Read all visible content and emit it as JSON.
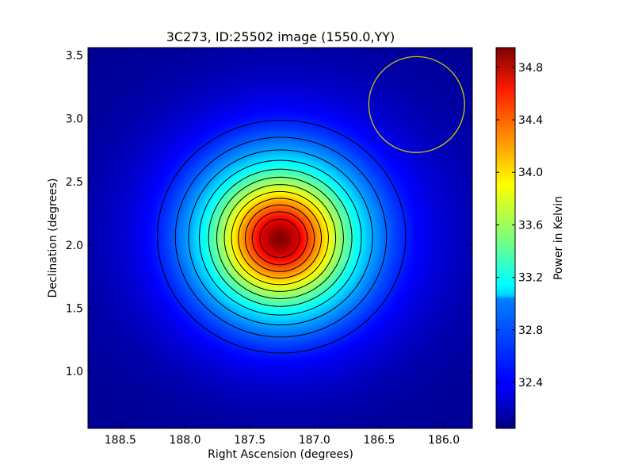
{
  "chart_data": {
    "type": "heatmap",
    "title": "3C273, ID:25502 image (1550.0,YY)",
    "xlabel": "Right Ascension (degrees)",
    "ylabel": "Declination (degrees)",
    "xlim": [
      188.75,
      185.78
    ],
    "ylim": [
      0.55,
      3.56
    ],
    "x_inverted": true,
    "xticks": [
      "188.5",
      "188.0",
      "187.5",
      "187.0",
      "186.5",
      "186.0"
    ],
    "xtick_values": [
      188.5,
      188.0,
      187.5,
      187.0,
      186.5,
      186.0
    ],
    "yticks": [
      "1.0",
      "1.5",
      "2.0",
      "2.5",
      "3.0",
      "3.5"
    ],
    "ytick_values": [
      1.0,
      1.5,
      2.0,
      2.5,
      3.0,
      3.5
    ],
    "colormap": "jet",
    "colorbar": {
      "label": "Power in Kelvin",
      "range": [
        32.05,
        34.95
      ],
      "ticks": [
        "32.4",
        "32.8",
        "33.2",
        "33.6",
        "34.0",
        "34.4",
        "34.8"
      ],
      "tick_values": [
        32.4,
        32.8,
        33.2,
        33.6,
        34.0,
        34.4,
        34.8
      ]
    },
    "source": {
      "ra": 187.27,
      "dec": 2.05,
      "peak": 34.95,
      "background": 32.1
    },
    "beam_circle": {
      "ra": 186.21,
      "dec": 3.11,
      "radius_deg": 0.37,
      "color": "#c8c800"
    },
    "contour_line_color": "#000000",
    "contour_count": 12,
    "grid": false
  }
}
